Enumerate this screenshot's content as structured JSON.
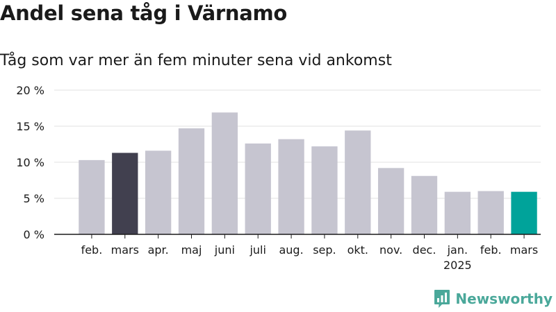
{
  "title": "Andel sena tåg i Värnamo",
  "subtitle": "Tåg som var mer än fem minuter sena vid ankomst",
  "brand": {
    "name": "Newsworthy",
    "icon": "newsworthy-logo-icon",
    "color": "#4aa89a"
  },
  "colors": {
    "default_bar": "#c6c5d0",
    "previous_year_bar": "#41404f",
    "current_bar": "#00a39a",
    "gridline": "#e1e1e1",
    "axis": "#1a1a1a"
  },
  "chart_data": {
    "type": "bar",
    "title": "Andel sena tåg i Värnamo",
    "subtitle": "Tåg som var mer än fem minuter sena vid ankomst",
    "categories": [
      "feb.",
      "mars",
      "apr.",
      "maj",
      "juni",
      "juli",
      "aug.",
      "sep.",
      "okt.",
      "nov.",
      "dec.",
      "jan.",
      "feb.",
      "mars"
    ],
    "category_sublabels": [
      "",
      "",
      "",
      "",
      "",
      "",
      "",
      "",
      "",
      "",
      "",
      "2025",
      "",
      ""
    ],
    "values": [
      10.3,
      11.3,
      11.6,
      14.7,
      16.9,
      12.6,
      13.2,
      12.2,
      14.4,
      9.2,
      8.1,
      5.9,
      6.0,
      5.9
    ],
    "highlight": {
      "previous_year": 1,
      "current": 13
    },
    "ylim": [
      0,
      20
    ],
    "yticks": [
      0,
      5,
      10,
      15,
      20
    ],
    "ytick_labels": [
      "0 %",
      "5 %",
      "10 %",
      "15 %",
      "20 %"
    ],
    "grid": true,
    "xlabel": "",
    "ylabel": ""
  }
}
